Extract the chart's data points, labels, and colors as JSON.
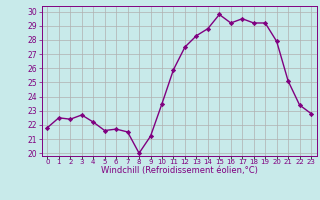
{
  "x": [
    0,
    1,
    2,
    3,
    4,
    5,
    6,
    7,
    8,
    9,
    10,
    11,
    12,
    13,
    14,
    15,
    16,
    17,
    18,
    19,
    20,
    21,
    22,
    23
  ],
  "y": [
    21.8,
    22.5,
    22.4,
    22.7,
    22.2,
    21.6,
    21.7,
    21.5,
    20.0,
    21.2,
    23.5,
    25.9,
    27.5,
    28.3,
    28.8,
    29.8,
    29.2,
    29.5,
    29.2,
    29.2,
    27.9,
    25.1,
    23.4,
    22.8
  ],
  "line_color": "#800080",
  "marker": "D",
  "markersize": 2.2,
  "linewidth": 1.0,
  "ylim": [
    19.8,
    30.4
  ],
  "yticks": [
    20,
    21,
    22,
    23,
    24,
    25,
    26,
    27,
    28,
    29,
    30
  ],
  "xtick_labels": [
    "0",
    "1",
    "2",
    "3",
    "4",
    "5",
    "6",
    "7",
    "8",
    "9",
    "10",
    "11",
    "12",
    "13",
    "14",
    "15",
    "16",
    "17",
    "18",
    "19",
    "20",
    "21",
    "22",
    "23"
  ],
  "xlabel": "Windchill (Refroidissement éolien,°C)",
  "bg_color": "#c8eaea",
  "grid_color": "#b0b0b0",
  "spine_color": "#800080",
  "tick_color": "#800080",
  "label_color": "#800080"
}
